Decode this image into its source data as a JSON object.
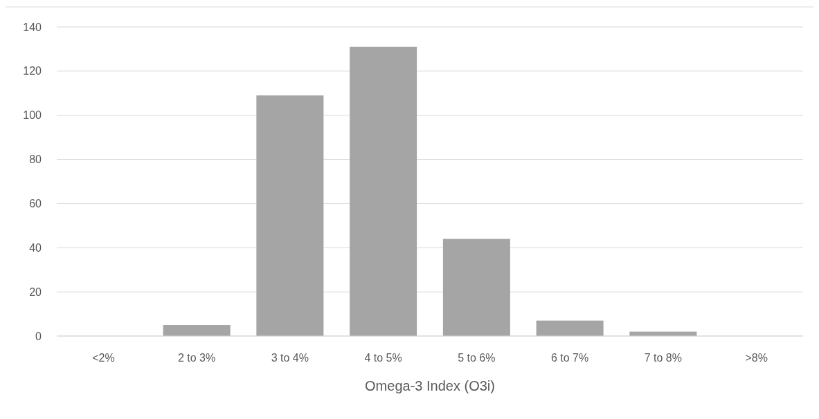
{
  "chart_data": {
    "type": "bar",
    "xlabel": "Omega-3 Index (O3i)",
    "categories": [
      "<2%",
      "2 to 3%",
      "3 to 4%",
      "4 to 5%",
      "5 to 6%",
      "6 to 7%",
      "7 to 8%",
      ">8%"
    ],
    "values": [
      0,
      5,
      109,
      131,
      44,
      7,
      2,
      0
    ],
    "color": "#a5a5a5",
    "ylim": [
      0,
      140
    ],
    "yticks": [
      0,
      20,
      40,
      60,
      80,
      100,
      120,
      140
    ],
    "grid": "y"
  }
}
